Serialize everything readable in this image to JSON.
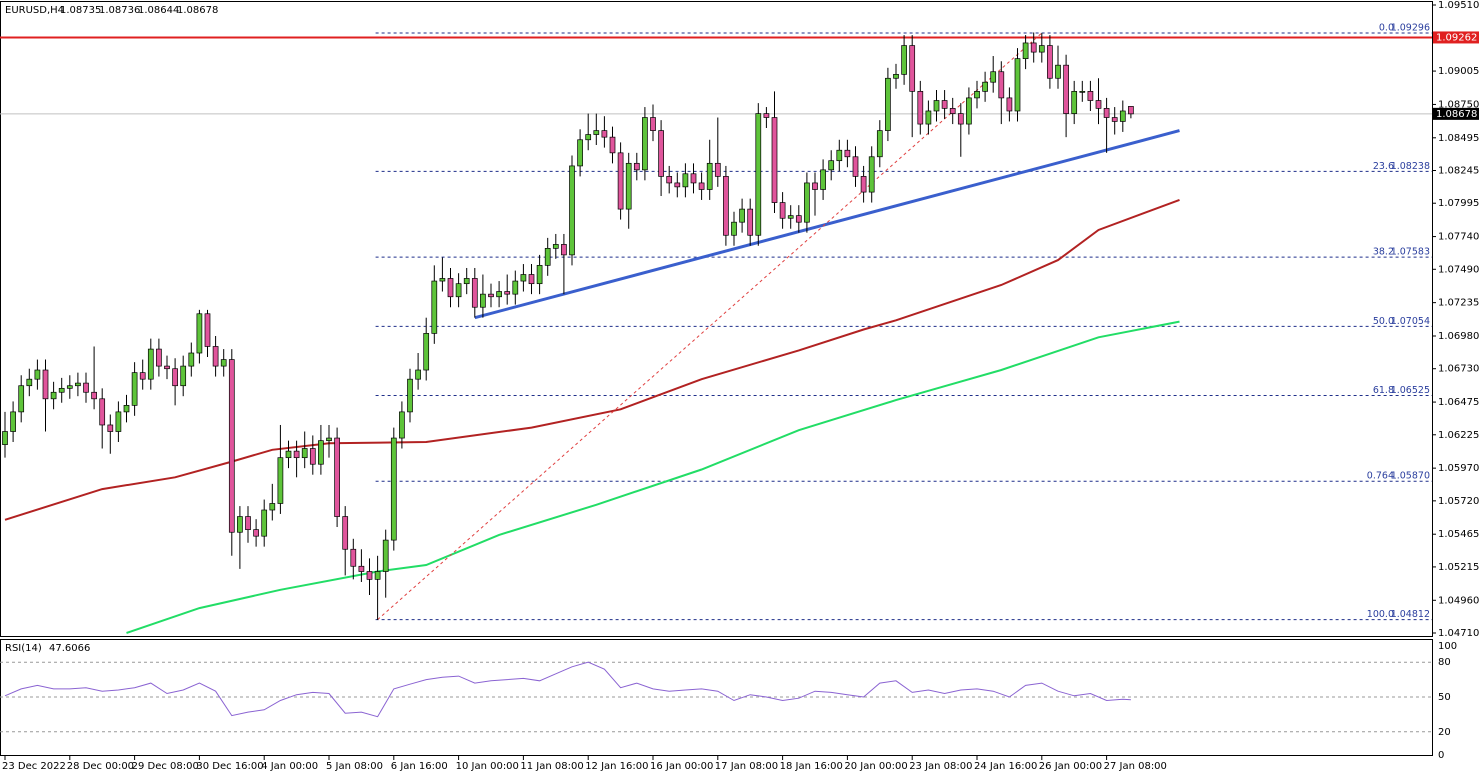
{
  "chart_data": [
    {
      "type": "candlestick",
      "symbol": "EURUSD,H4",
      "candles": [
        [
          1.0615,
          1.064,
          1.0605,
          1.0625
        ],
        [
          1.0625,
          1.0648,
          1.0617,
          1.064
        ],
        [
          1.064,
          1.0668,
          1.0632,
          1.066
        ],
        [
          1.066,
          1.0673,
          1.0652,
          1.0665
        ],
        [
          1.0665,
          1.068,
          1.0657,
          1.0672
        ],
        [
          1.0672,
          1.068,
          1.0625,
          1.065
        ],
        [
          1.065,
          1.0663,
          1.0642,
          1.0655
        ],
        [
          1.0655,
          1.0666,
          1.0647,
          1.0658
        ],
        [
          1.0658,
          1.0668,
          1.065,
          1.066
        ],
        [
          1.066,
          1.067,
          1.0652,
          1.0662
        ],
        [
          1.0662,
          1.067,
          1.0647,
          1.0655
        ],
        [
          1.0655,
          1.069,
          1.0642,
          1.065
        ],
        [
          1.065,
          1.0658,
          1.0612,
          1.063
        ],
        [
          1.063,
          1.0638,
          1.0608,
          1.0625
        ],
        [
          1.0625,
          1.0648,
          1.0617,
          1.064
        ],
        [
          1.064,
          1.0653,
          1.0632,
          1.0645
        ],
        [
          1.0645,
          1.0678,
          1.0637,
          1.067
        ],
        [
          1.067,
          1.068,
          1.0657,
          1.0665
        ],
        [
          1.0665,
          1.0696,
          1.0657,
          1.0688
        ],
        [
          1.0688,
          1.0696,
          1.0667,
          1.0675
        ],
        [
          1.0675,
          1.0683,
          1.0665,
          1.0673
        ],
        [
          1.0673,
          1.0681,
          1.0645,
          1.066
        ],
        [
          1.066,
          1.0683,
          1.0652,
          1.0675
        ],
        [
          1.0675,
          1.0693,
          1.0667,
          1.0685
        ],
        [
          1.0685,
          1.0718,
          1.0677,
          1.0715
        ],
        [
          1.0715,
          1.0718,
          1.0682,
          1.069
        ],
        [
          1.069,
          1.0698,
          1.0667,
          1.0675
        ],
        [
          1.0675,
          1.0688,
          1.0667,
          1.068
        ],
        [
          1.068,
          1.0688,
          1.053,
          1.0548
        ],
        [
          1.0548,
          1.0568,
          1.052,
          1.056
        ],
        [
          1.056,
          1.0568,
          1.054,
          1.055
        ],
        [
          1.055,
          1.0558,
          1.0537,
          1.0545
        ],
        [
          1.0545,
          1.0573,
          1.0537,
          1.0565
        ],
        [
          1.0565,
          1.0585,
          1.0557,
          1.057
        ],
        [
          1.057,
          1.063,
          1.0562,
          1.0605
        ],
        [
          1.0605,
          1.0618,
          1.0597,
          1.061
        ],
        [
          1.061,
          1.0618,
          1.059,
          1.0605
        ],
        [
          1.0605,
          1.0625,
          1.0597,
          1.0612
        ],
        [
          1.0612,
          1.0622,
          1.0592,
          1.06
        ],
        [
          1.06,
          1.063,
          1.0592,
          1.0618
        ],
        [
          1.0618,
          1.063,
          1.0605,
          1.062
        ],
        [
          1.062,
          1.0628,
          1.0552,
          1.056
        ],
        [
          1.056,
          1.0568,
          1.0515,
          1.0535
        ],
        [
          1.0535,
          1.0543,
          1.0512,
          1.0522
        ],
        [
          1.0522,
          1.0535,
          1.051,
          1.0518
        ],
        [
          1.0518,
          1.0528,
          1.05,
          1.0512
        ],
        [
          1.0512,
          1.053,
          1.0481,
          1.0518
        ],
        [
          1.0518,
          1.055,
          1.0498,
          1.0542
        ],
        [
          1.0542,
          1.0628,
          1.0534,
          1.062
        ],
        [
          1.062,
          1.0648,
          1.0612,
          1.064
        ],
        [
          1.064,
          1.0673,
          1.0632,
          1.0665
        ],
        [
          1.0665,
          1.0685,
          1.0657,
          1.0672
        ],
        [
          1.0672,
          1.0712,
          1.0664,
          1.07
        ],
        [
          1.07,
          1.0752,
          1.0692,
          1.074
        ],
        [
          1.074,
          1.0758,
          1.0732,
          1.0742
        ],
        [
          1.0742,
          1.075,
          1.072,
          1.0728
        ],
        [
          1.0728,
          1.0746,
          1.072,
          1.0738
        ],
        [
          1.0738,
          1.075,
          1.073,
          1.0742
        ],
        [
          1.0742,
          1.075,
          1.0712,
          1.072
        ],
        [
          1.072,
          1.0745,
          1.0712,
          1.073
        ],
        [
          1.073,
          1.0738,
          1.072,
          1.0728
        ],
        [
          1.0728,
          1.074,
          1.072,
          1.0732
        ],
        [
          1.0732,
          1.0745,
          1.0722,
          1.073
        ],
        [
          1.073,
          1.0748,
          1.0722,
          1.074
        ],
        [
          1.074,
          1.0753,
          1.0732,
          1.0745
        ],
        [
          1.0745,
          1.0753,
          1.073,
          1.0738
        ],
        [
          1.0738,
          1.076,
          1.073,
          1.0752
        ],
        [
          1.0752,
          1.0773,
          1.0744,
          1.0765
        ],
        [
          1.0765,
          1.0776,
          1.0757,
          1.0768
        ],
        [
          1.0768,
          1.0776,
          1.073,
          1.076
        ],
        [
          1.076,
          1.0836,
          1.0752,
          1.0828
        ],
        [
          1.0828,
          1.0856,
          1.082,
          1.0848
        ],
        [
          1.0848,
          1.0868,
          1.084,
          1.0852
        ],
        [
          1.0852,
          1.0868,
          1.0844,
          1.0855
        ],
        [
          1.0855,
          1.0866,
          1.0842,
          1.085
        ],
        [
          1.085,
          1.0858,
          1.083,
          1.0838
        ],
        [
          1.0838,
          1.0846,
          1.0787,
          1.0795
        ],
        [
          1.0795,
          1.0838,
          1.078,
          1.083
        ],
        [
          1.083,
          1.0838,
          1.0817,
          1.0825
        ],
        [
          1.0825,
          1.0873,
          1.0817,
          1.0865
        ],
        [
          1.0865,
          1.0875,
          1.0847,
          1.0855
        ],
        [
          1.0855,
          1.0863,
          1.0805,
          1.082
        ],
        [
          1.082,
          1.0828,
          1.0807,
          1.0815
        ],
        [
          1.0815,
          1.0823,
          1.0804,
          1.0812
        ],
        [
          1.0812,
          1.083,
          1.0804,
          1.0822
        ],
        [
          1.0822,
          1.083,
          1.0807,
          1.0815
        ],
        [
          1.0815,
          1.0823,
          1.0802,
          1.081
        ],
        [
          1.081,
          1.0848,
          1.0802,
          1.083
        ],
        [
          1.083,
          1.0865,
          1.0812,
          1.082
        ],
        [
          1.082,
          1.0828,
          1.0767,
          1.0775
        ],
        [
          1.0775,
          1.0793,
          1.0767,
          1.0785
        ],
        [
          1.0785,
          1.0803,
          1.0777,
          1.0795
        ],
        [
          1.0795,
          1.0803,
          1.0767,
          1.0775
        ],
        [
          1.0775,
          1.0876,
          1.0767,
          1.0868
        ],
        [
          1.0868,
          1.0873,
          1.0857,
          1.0865
        ],
        [
          1.0865,
          1.0885,
          1.0792,
          1.08
        ],
        [
          1.08,
          1.0808,
          1.078,
          1.0788
        ],
        [
          1.0788,
          1.0798,
          1.078,
          1.079
        ],
        [
          1.079,
          1.0798,
          1.0777,
          1.0785
        ],
        [
          1.0785,
          1.0823,
          1.0777,
          1.0815
        ],
        [
          1.0815,
          1.0823,
          1.079,
          1.081
        ],
        [
          1.081,
          1.0833,
          1.0802,
          1.0825
        ],
        [
          1.0825,
          1.084,
          1.0817,
          1.0832
        ],
        [
          1.0832,
          1.0848,
          1.0824,
          1.084
        ],
        [
          1.084,
          1.0848,
          1.0827,
          1.0835
        ],
        [
          1.0835,
          1.0843,
          1.0812,
          1.082
        ],
        [
          1.082,
          1.0828,
          1.08,
          1.0808
        ],
        [
          1.0808,
          1.0843,
          1.08,
          1.0835
        ],
        [
          1.0835,
          1.0863,
          1.0827,
          1.0855
        ],
        [
          1.0855,
          1.0903,
          1.0847,
          1.0895
        ],
        [
          1.0895,
          1.0906,
          1.0887,
          1.0898
        ],
        [
          1.0898,
          1.0928,
          1.089,
          1.092
        ],
        [
          1.092,
          1.0928,
          1.085,
          1.0885
        ],
        [
          1.0885,
          1.0893,
          1.0852,
          1.086
        ],
        [
          1.086,
          1.0878,
          1.0852,
          1.087
        ],
        [
          1.087,
          1.0886,
          1.0862,
          1.0878
        ],
        [
          1.0878,
          1.0886,
          1.0864,
          1.0872
        ],
        [
          1.0872,
          1.088,
          1.086,
          1.0868
        ],
        [
          1.0868,
          1.0876,
          1.0835,
          1.086
        ],
        [
          1.086,
          1.0888,
          1.0852,
          1.088
        ],
        [
          1.088,
          1.0893,
          1.0872,
          1.0885
        ],
        [
          1.0885,
          1.09,
          1.0877,
          1.0892
        ],
        [
          1.0892,
          1.0912,
          1.0884,
          1.09
        ],
        [
          1.09,
          1.0908,
          1.086,
          1.088
        ],
        [
          1.088,
          1.0888,
          1.0862,
          1.087
        ],
        [
          1.087,
          1.0918,
          1.0862,
          1.091
        ],
        [
          1.091,
          1.0928,
          1.0902,
          1.0922
        ],
        [
          1.0922,
          1.093,
          1.0907,
          1.0915
        ],
        [
          1.0915,
          1.09296,
          1.0907,
          1.092
        ],
        [
          1.092,
          1.0928,
          1.0887,
          1.0895
        ],
        [
          1.0895,
          1.092,
          1.0887,
          1.0905
        ],
        [
          1.0905,
          1.0913,
          1.085,
          1.0868
        ],
        [
          1.0868,
          1.0893,
          1.086,
          1.0885
        ],
        [
          1.0885,
          1.0893,
          1.0877,
          1.0885
        ],
        [
          1.0885,
          1.0893,
          1.087,
          1.0878
        ],
        [
          1.0878,
          1.0895,
          1.086,
          1.0872
        ],
        [
          1.0872,
          1.088,
          1.0838,
          1.0865
        ],
        [
          1.0865,
          1.0873,
          1.0852,
          1.0862
        ],
        [
          1.0862,
          1.0878,
          1.0854,
          1.087
        ],
        [
          1.08735,
          1.08736,
          1.08644,
          1.08678
        ]
      ],
      "up_color": "#5ec43a",
      "down_color": "#e0559c",
      "ylim": [
        1.04687,
        1.09533
      ],
      "yticks": [
        {
          "value": 1.0951,
          "label": "1.09510"
        },
        1.09005,
        {
          "value": 1.0875,
          "label": "1.08750"
        },
        1.08495,
        1.08245,
        1.07995,
        {
          "value": 1.0774,
          "label": "1.07740"
        },
        {
          "value": 1.0749,
          "label": "1.07490"
        },
        1.07235,
        {
          "value": 1.0698,
          "label": "1.06980"
        },
        {
          "value": 1.0673,
          "label": "1.06730"
        },
        1.06475,
        1.06225,
        {
          "value": 1.0597,
          "label": "1.05970"
        },
        {
          "value": 1.0572,
          "label": "1.05720"
        },
        1.05465,
        1.05215,
        {
          "value": 1.0496,
          "label": "1.04960"
        },
        {
          "value": 1.0471,
          "label": "1.04710"
        }
      ],
      "xticks": [
        {
          "value": 0,
          "label": "23 Dec 2022"
        },
        {
          "value": 8,
          "label": "28 Dec 00:00"
        },
        {
          "value": 16,
          "label": "29 Dec 08:00"
        },
        {
          "value": 24,
          "label": "30 Dec 16:00"
        },
        {
          "value": 32,
          "label": "4 Jan 00:00"
        },
        {
          "value": 40,
          "label": "5 Jan 08:00"
        },
        {
          "value": 48,
          "label": "6 Jan 16:00"
        },
        {
          "value": 56,
          "label": "10 Jan 00:00"
        },
        {
          "value": 64,
          "label": "11 Jan 08:00"
        },
        {
          "value": 72,
          "label": "12 Jan 16:00"
        },
        {
          "value": 80,
          "label": "16 Jan 00:00"
        },
        {
          "value": 88,
          "label": "17 Jan 08:00"
        },
        {
          "value": 96,
          "label": "18 Jan 16:00"
        },
        {
          "value": 104,
          "label": "20 Jan 00:00"
        },
        {
          "value": 112,
          "label": "23 Jan 08:00"
        },
        {
          "value": 120,
          "label": "24 Jan 16:00"
        },
        {
          "value": 128,
          "label": "26 Jan 00:00"
        },
        {
          "value": 136,
          "label": "27 Jan 08:00"
        }
      ],
      "lines": [
        {
          "color": "#b22222",
          "width": 2,
          "x": [
            0,
            12,
            21,
            28,
            33,
            40,
            52,
            65,
            76,
            86,
            98,
            106,
            110,
            123,
            130,
            135,
            145
          ],
          "values": [
            1.05575,
            1.0581,
            1.059,
            1.0602,
            1.0611,
            1.0616,
            1.0617,
            1.0628,
            1.0642,
            1.0665,
            1.0687,
            1.0703,
            1.071,
            1.0737,
            1.0756,
            1.0779,
            1.0802
          ]
        },
        {
          "color": "#22dd66",
          "width": 2,
          "x": [
            15,
            24,
            34,
            46,
            52,
            61,
            73,
            86,
            98,
            110,
            123,
            135,
            145
          ],
          "values": [
            1.0471,
            1.049,
            1.0504,
            1.0518,
            1.0523,
            1.0546,
            1.0569,
            1.0596,
            1.0626,
            1.0649,
            1.0672,
            1.0697,
            1.0709
          ]
        },
        {
          "color": "#3a5fcd",
          "width": 3,
          "x": [
            58,
            145
          ],
          "values": [
            1.0712,
            1.0855
          ]
        },
        {
          "color": "#e04040",
          "width": 1,
          "dash": true,
          "x": [
            46,
            128
          ],
          "values": [
            1.04812,
            1.09296
          ]
        }
      ],
      "fib_levels": [
        {
          "level": "0.0",
          "value": 1.09296
        },
        {
          "level": "23.6",
          "value": 1.08238
        },
        {
          "level": "38.2",
          "value": 1.07583
        },
        {
          "level": "50.0",
          "value": 1.07054
        },
        {
          "level": "61.8",
          "value": 1.06525
        },
        {
          "level": "0.764",
          "value": 1.0587,
          "value_label": "1.05870"
        },
        {
          "level": "100.0",
          "value": 1.04812
        }
      ],
      "hlines": [
        {
          "value": 1.09262,
          "color": "#e02020"
        },
        {
          "value": 1.08678,
          "color": "#000000"
        }
      ]
    },
    {
      "type": "line",
      "title": "RSI(14)",
      "color": "#8a63d2",
      "x": [
        0,
        2,
        4,
        6,
        8,
        10,
        12,
        14,
        16,
        18,
        20,
        22,
        24,
        26,
        28,
        30,
        32,
        34,
        36,
        38,
        40,
        42,
        44,
        46,
        48,
        50,
        52,
        54,
        56,
        58,
        60,
        62,
        64,
        66,
        68,
        70,
        72,
        74,
        76,
        78,
        80,
        82,
        84,
        86,
        88,
        90,
        92,
        94,
        96,
        98,
        100,
        102,
        104,
        106,
        108,
        110,
        112,
        114,
        116,
        118,
        120,
        122,
        124,
        126,
        128,
        130,
        132,
        134,
        136,
        138,
        139
      ],
      "values": [
        51,
        57,
        60,
        57,
        57,
        58,
        55,
        56,
        58,
        62,
        53,
        56,
        62,
        55,
        34,
        37,
        39,
        47,
        52,
        54,
        53,
        36,
        37,
        33,
        57,
        61,
        65,
        67,
        68,
        62,
        64,
        65,
        66,
        64,
        70,
        76,
        80,
        74,
        58,
        62,
        57,
        55,
        56,
        57,
        55,
        47,
        52,
        50,
        47,
        49,
        55,
        54,
        52,
        50,
        62,
        64,
        54,
        56,
        53,
        56,
        57,
        55,
        50,
        60,
        62,
        55,
        51,
        53,
        47,
        48,
        47.6066
      ],
      "ylim": [
        0,
        100
      ],
      "yticks": [
        100,
        80,
        50,
        20,
        0
      ]
    }
  ]
}
